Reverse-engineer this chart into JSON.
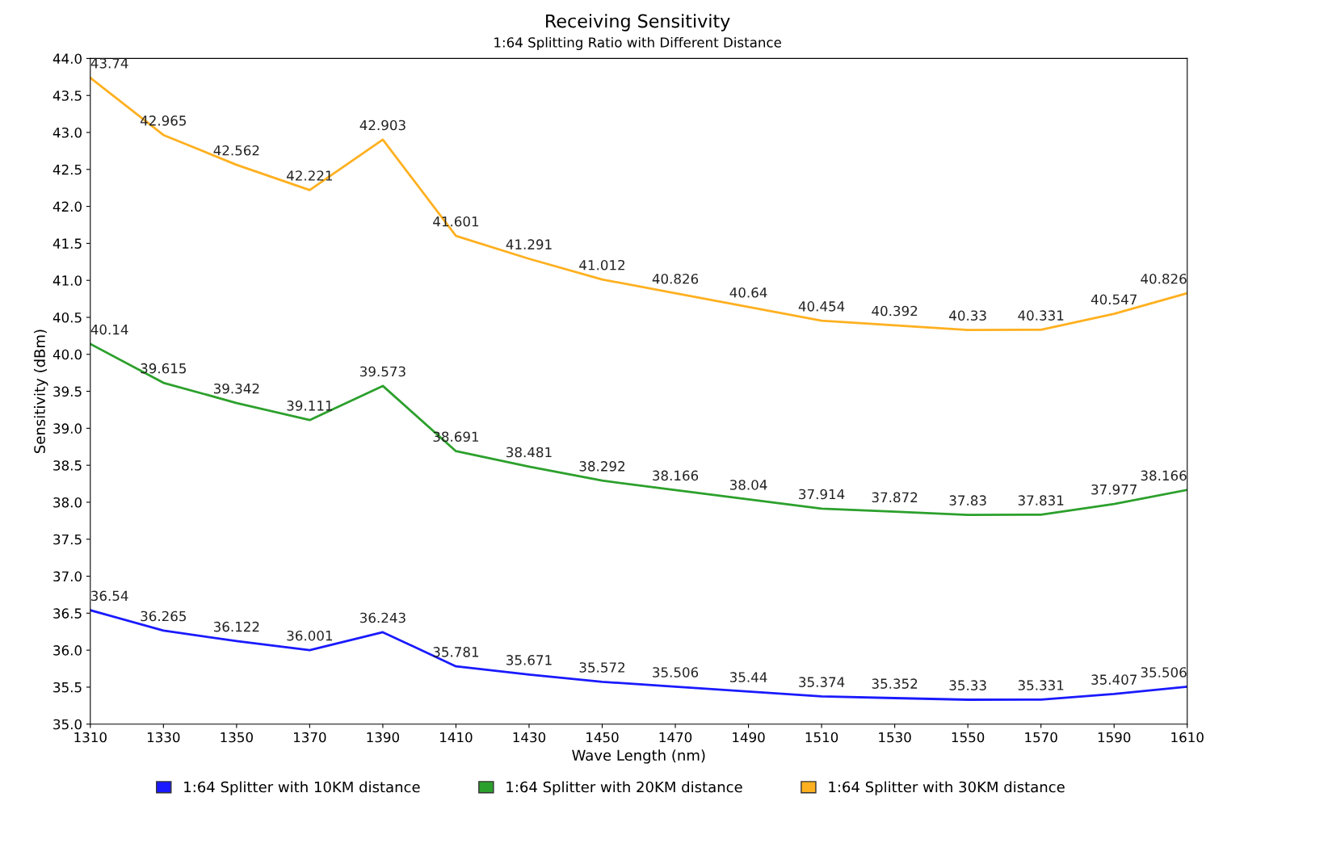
{
  "chart_data": {
    "type": "line",
    "title": "Receiving Sensitivity",
    "subtitle": "1:64 Splitting Ratio with Different Distance",
    "xlabel": "Wave Length (nm)",
    "ylabel": "Sensitivity (dBm)",
    "x": [
      1310,
      1330,
      1350,
      1370,
      1390,
      1410,
      1430,
      1450,
      1470,
      1490,
      1510,
      1530,
      1550,
      1570,
      1590,
      1610
    ],
    "series": [
      {
        "name": "1:64 Splitter with 10KM distance",
        "color": "#1a1aff",
        "values": [
          36.54,
          36.265,
          36.122,
          36.001,
          36.243,
          35.781,
          35.671,
          35.572,
          35.506,
          35.44,
          35.374,
          35.352,
          35.33,
          35.331,
          35.407,
          35.506
        ]
      },
      {
        "name": "1:64 Splitter with 20KM distance",
        "color": "#2ca02c",
        "values": [
          40.14,
          39.615,
          39.342,
          39.111,
          39.573,
          38.691,
          38.481,
          38.292,
          38.166,
          38.04,
          37.914,
          37.872,
          37.83,
          37.831,
          37.977,
          38.166
        ]
      },
      {
        "name": "1:64 Splitter with 30KM distance",
        "color": "#ffb020",
        "values": [
          43.74,
          42.965,
          42.562,
          42.221,
          42.903,
          41.601,
          41.291,
          41.012,
          40.826,
          40.64,
          40.454,
          40.392,
          40.33,
          40.331,
          40.547,
          40.826
        ]
      }
    ],
    "xlim": [
      1310,
      1610
    ],
    "xticks": [
      1310,
      1330,
      1350,
      1370,
      1390,
      1410,
      1430,
      1450,
      1470,
      1490,
      1510,
      1530,
      1550,
      1570,
      1590,
      1610
    ],
    "ylim": [
      35,
      44
    ],
    "yticks": [
      {
        "value": 35,
        "label": "35.0"
      },
      35.5,
      {
        "value": 36,
        "label": "36.0"
      },
      36.5,
      {
        "value": 37,
        "label": "37.0"
      },
      37.5,
      {
        "value": 38,
        "label": "38.0"
      },
      38.5,
      {
        "value": 39,
        "label": "39.0"
      },
      39.5,
      {
        "value": 40,
        "label": "40.0"
      },
      40.5,
      {
        "value": 41,
        "label": "41.0"
      },
      41.5,
      {
        "value": 42,
        "label": "42.0"
      },
      42.5,
      {
        "value": 43,
        "label": "43.0"
      },
      43.5,
      {
        "value": 44,
        "label": "44.0"
      }
    ],
    "data_labels": true,
    "grid": false,
    "legend": "bottom",
    "marker": "none",
    "line_style": "solid"
  }
}
